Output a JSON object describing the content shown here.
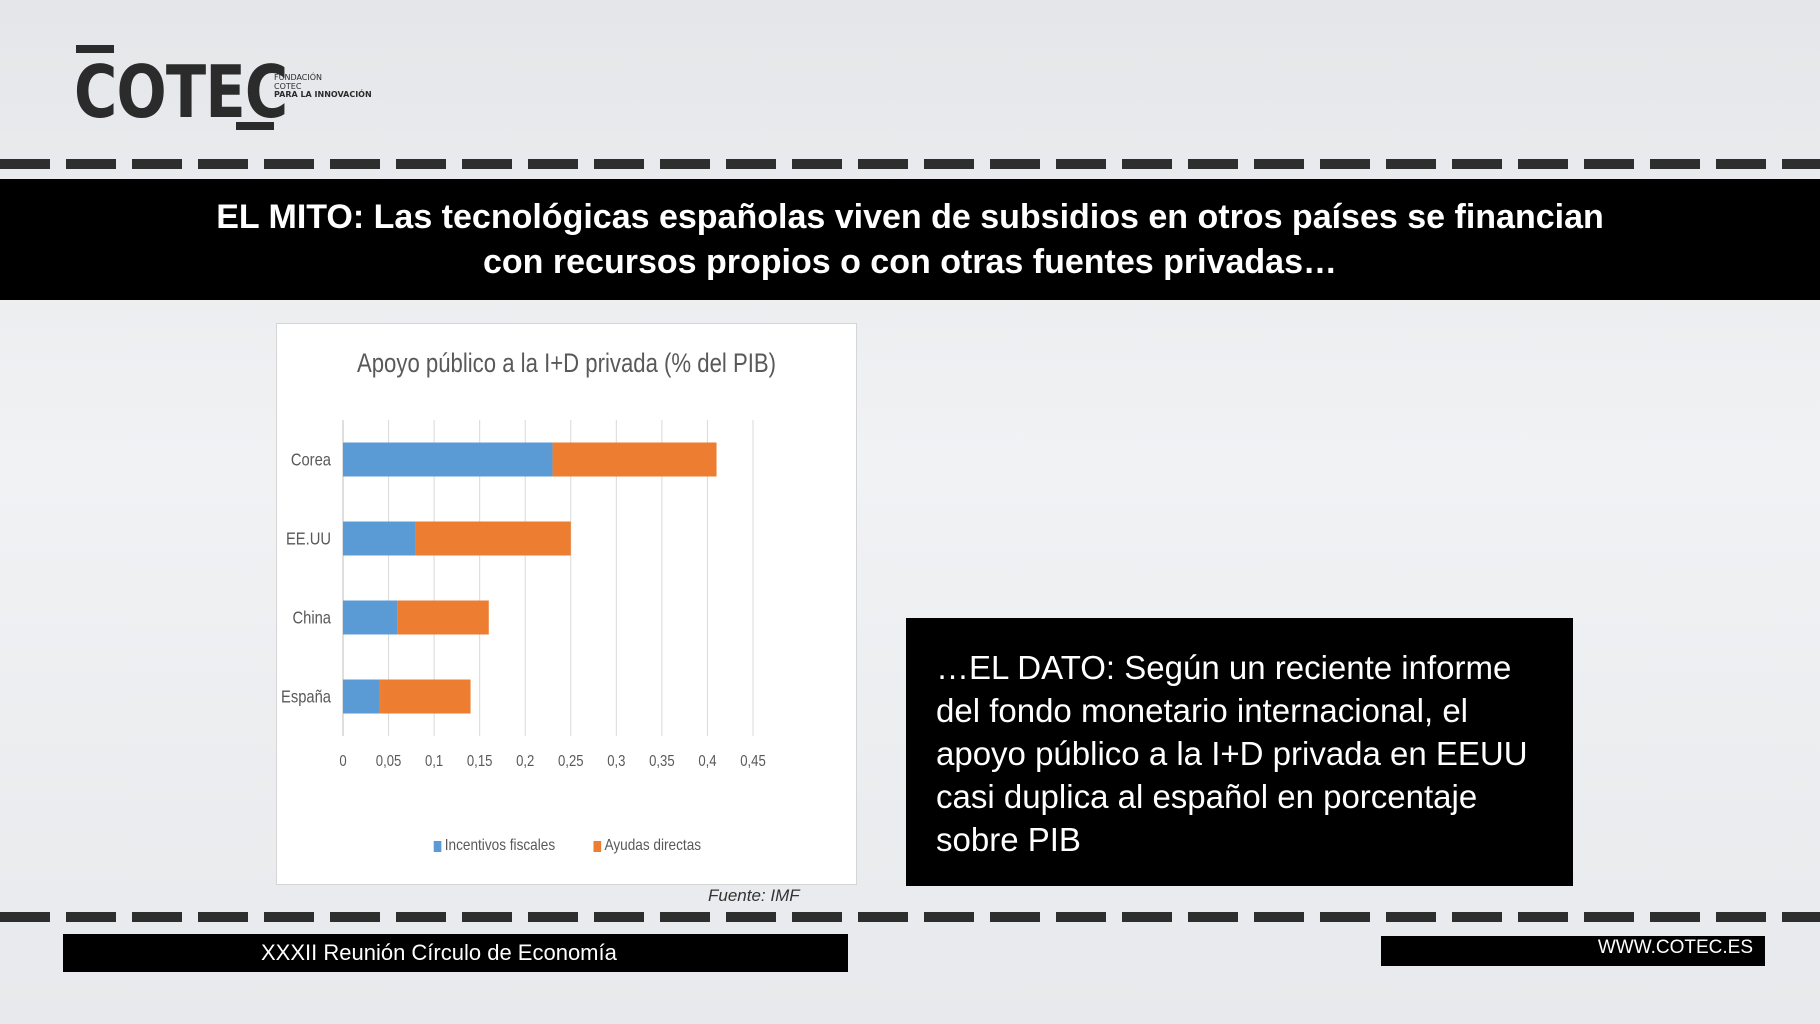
{
  "logo": {
    "word": "COTEC",
    "sub_lines": [
      "FUNDACIÓN",
      "COTEC",
      "PARA LA INNOVACIÓN"
    ]
  },
  "title": {
    "line1": "EL MITO: Las tecnológicas españolas viven de subsidios en otros países se financian",
    "line2": "con recursos propios o con otras fuentes privadas…"
  },
  "chart_data": {
    "type": "bar",
    "orientation": "horizontal",
    "stacked": true,
    "title": "Apoyo público a la I+D privada (% del PIB)",
    "categories": [
      "Corea",
      "EE.UU",
      "China",
      "España"
    ],
    "series": [
      {
        "name": "Incentivos fiscales",
        "color": "#5b9bd5",
        "values": [
          0.23,
          0.08,
          0.06,
          0.04
        ]
      },
      {
        "name": "Ayudas directas",
        "color": "#ed7d31",
        "values": [
          0.18,
          0.17,
          0.1,
          0.1
        ]
      }
    ],
    "xlim": [
      0,
      0.45
    ],
    "xticks": [
      "0",
      "0,05",
      "0,1",
      "0,15",
      "0,2",
      "0,25",
      "0,3",
      "0,35",
      "0,4",
      "0,45"
    ],
    "grid": true,
    "legend_position": "bottom"
  },
  "source": "Fuente: IMF",
  "fact": "…EL DATO: Según un reciente informe del fondo monetario internacional, el apoyo público a la I+D privada en EEUU casi duplica al español en porcentaje sobre PIB",
  "footer": {
    "left": "XXXII Reunión Círculo de Economía",
    "right": "WWW.COTEC.ES"
  }
}
